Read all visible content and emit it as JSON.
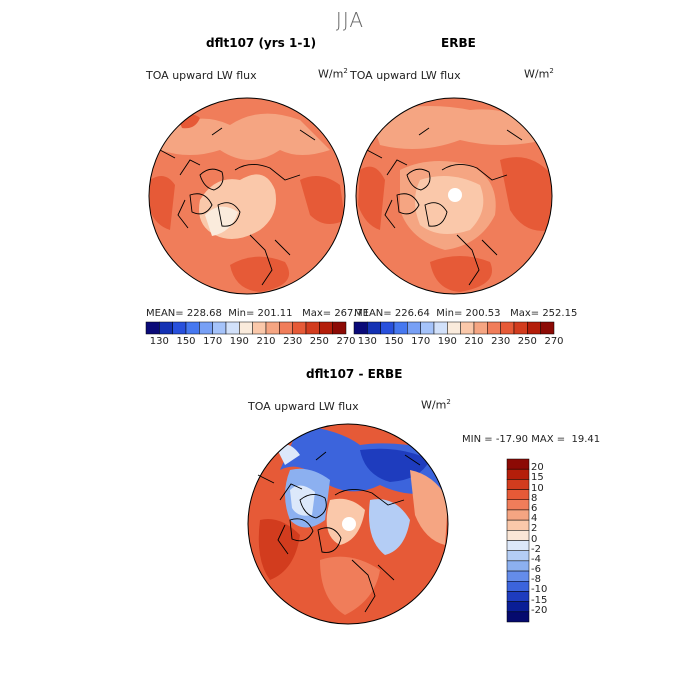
{
  "season_title": "JJA",
  "panels": [
    {
      "title": "dflt107 (yrs 1-1)",
      "variable": "TOA upward LW flux",
      "units": "W/m",
      "units_exp": "2",
      "mean_label": "MEAN=",
      "mean": "228.68",
      "min_label": "Min=",
      "min": "201.11",
      "max_label": "Max=",
      "max": "267.71"
    },
    {
      "title": "ERBE",
      "variable": "TOA upward LW flux",
      "units": "W/m",
      "units_exp": "2",
      "mean_label": "MEAN=",
      "mean": "226.64",
      "min_label": "Min=",
      "min": "200.53",
      "max_label": "Max=",
      "max": "252.15"
    }
  ],
  "abs_colorbar": {
    "ticks": [
      "130",
      "150",
      "170",
      "190",
      "210",
      "230",
      "250",
      "270"
    ],
    "colors": [
      "#0a0a78",
      "#1432b4",
      "#2850dc",
      "#4678f0",
      "#78a0f5",
      "#a5c3fa",
      "#d2e1fa",
      "#faebdc",
      "#fac8aa",
      "#f5a582",
      "#f07d5a",
      "#e65a37",
      "#d23c1e",
      "#b41e0a",
      "#8c0a05"
    ]
  },
  "diff_panel": {
    "title": "dflt107 - ERBE",
    "variable": "TOA upward LW flux",
    "units": "W/m",
    "units_exp": "2",
    "min_label": "MIN =",
    "min": "-17.90",
    "max_label": "MAX =",
    "max": "19.41"
  },
  "diff_colorbar": {
    "labels": [
      "20",
      "15",
      "10",
      "8",
      "6",
      "4",
      "2",
      "0",
      "-2",
      "-4",
      "-6",
      "-8",
      "-10",
      "-15",
      "-20"
    ],
    "colors": [
      "#8c0a05",
      "#b41e0a",
      "#d23c1e",
      "#e65a37",
      "#f07d5a",
      "#f5a582",
      "#fac8aa",
      "#fae6d6",
      "#dce8fa",
      "#b4cdf5",
      "#8cb0f0",
      "#648cea",
      "#3c64dc",
      "#1e3cbe",
      "#0a1e96",
      "#050a6e"
    ]
  }
}
